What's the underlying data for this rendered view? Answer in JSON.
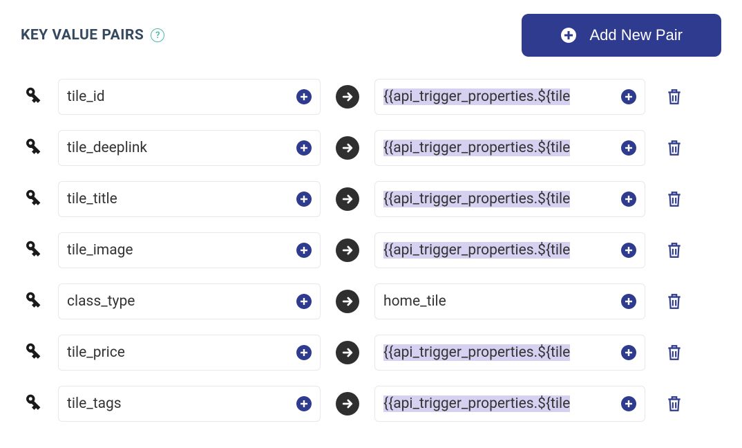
{
  "header": {
    "title": "KEY VALUE PAIRS",
    "add_button_label": "Add New Pair"
  },
  "colors": {
    "primary": "#2f3b8f",
    "heading": "#34495e",
    "help_teal": "#4db8a8",
    "border": "#e6e8ec",
    "arrow_bg": "#2f2f2f",
    "highlight_bg": "#d6d1f0",
    "highlight_brace": "#f7e9a8",
    "text": "#333333"
  },
  "pairs": [
    {
      "key": "tile_id",
      "value": "{{api_trigger_properties.${tile",
      "highlighted": true
    },
    {
      "key": "tile_deeplink",
      "value": "{{api_trigger_properties.${tile",
      "highlighted": true
    },
    {
      "key": "tile_title",
      "value": "{{api_trigger_properties.${tile",
      "highlighted": true
    },
    {
      "key": "tile_image",
      "value": "{{api_trigger_properties.${tile",
      "highlighted": true
    },
    {
      "key": "class_type",
      "value": "home_tile",
      "highlighted": false
    },
    {
      "key": "tile_price",
      "value": "{{api_trigger_properties.${tile",
      "highlighted": true
    },
    {
      "key": "tile_tags",
      "value": "{{api_trigger_properties.${tile",
      "highlighted": true
    }
  ],
  "typography": {
    "title_fontsize": 21,
    "title_weight": 700,
    "field_fontsize": 21,
    "button_fontsize": 22
  }
}
